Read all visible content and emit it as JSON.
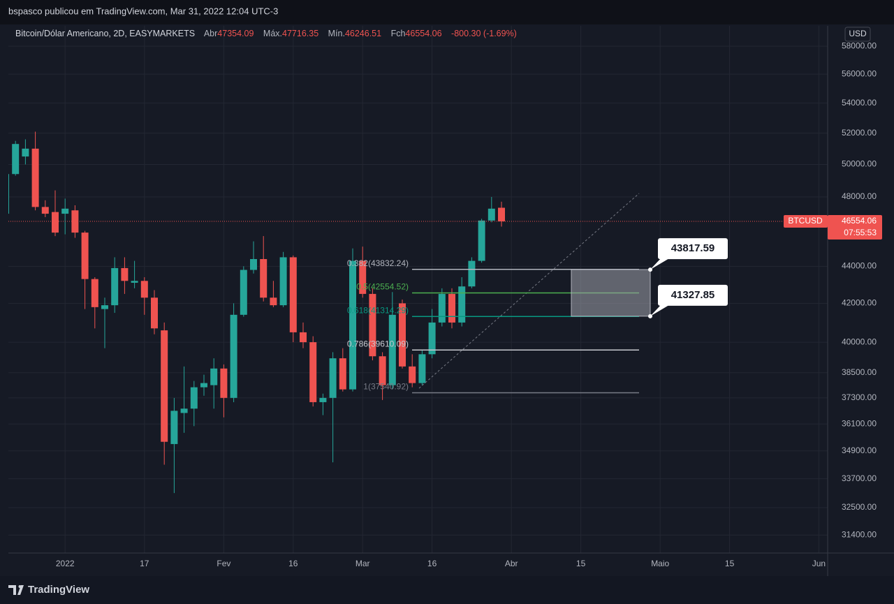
{
  "top_bar": {
    "text": "bspasco publicou em TradingView.com, Mar 31, 2022 12:04 UTC-3"
  },
  "chart_data": {
    "type": "candlestick",
    "title": "Bitcoin/Dólar Americano, 2D, EASYMARKETS",
    "legend_labels": {
      "open": "Abr",
      "high": "Máx.",
      "low": "Mín.",
      "close": "Fch"
    },
    "change": "-800.30 (-1.69%)",
    "currency": "USD",
    "symbol": "BTCUSD",
    "countdown": "07:55:53",
    "categories": [
      null,
      null,
      null,
      null,
      null,
      null,
      "2022",
      null,
      null,
      null,
      null,
      null,
      null,
      null,
      "17",
      null,
      null,
      null,
      null,
      null,
      null,
      null,
      "Fev",
      null,
      null,
      null,
      null,
      null,
      null,
      "16",
      null,
      null,
      null,
      null,
      null,
      null,
      "Mar",
      null,
      null,
      null,
      null,
      null,
      null,
      "16",
      null,
      null,
      null,
      null,
      null,
      null,
      null,
      "Abr",
      null,
      null,
      null,
      null,
      null,
      null,
      "15",
      null,
      null,
      null,
      null,
      null,
      null,
      null,
      "Maio",
      null,
      null,
      null,
      null,
      null,
      null,
      "15",
      null,
      null,
      null,
      null,
      null,
      null,
      null,
      null,
      "Jun"
    ],
    "open": [
      47000,
      49400,
      50500,
      51000,
      47400,
      47100,
      47000,
      47200,
      45900,
      43300,
      41700,
      41900,
      43900,
      43100,
      43200,
      42300,
      40600,
      35200,
      36600,
      36800,
      37800,
      37900,
      38700,
      37300,
      41400,
      43800,
      44400,
      42300,
      41900,
      44500,
      40500,
      40000,
      37100,
      37300,
      39200,
      37700,
      44300,
      42500,
      39300,
      37900,
      42000,
      38800,
      38000,
      39400,
      41000,
      42500,
      41000,
      42900,
      44300,
      46600,
      47354.09,
      null,
      null,
      null,
      null,
      null,
      null,
      null,
      null,
      null,
      null,
      null,
      null,
      null,
      null,
      null,
      null,
      null,
      null,
      null,
      null,
      null,
      null,
      null,
      null,
      null,
      null,
      null,
      null,
      null,
      null,
      null,
      null
    ],
    "high": [
      49600,
      51500,
      51600,
      52100,
      47800,
      48400,
      47900,
      47500,
      46000,
      43400,
      42300,
      44500,
      44500,
      44300,
      43400,
      42700,
      41000,
      37300,
      38800,
      38100,
      38400,
      39200,
      38900,
      42000,
      44000,
      45400,
      45700,
      43200,
      44800,
      44600,
      41000,
      40300,
      37500,
      39500,
      39700,
      45000,
      45100,
      42800,
      39500,
      42600,
      42200,
      39400,
      39600,
      41700,
      42800,
      42800,
      43400,
      44500,
      46700,
      48000,
      47716.35,
      null,
      null,
      null,
      null,
      null,
      null,
      null,
      null,
      null,
      null,
      null,
      null,
      null,
      null,
      null,
      null,
      null,
      null,
      null,
      null,
      null,
      null,
      null,
      null,
      null,
      null,
      null,
      null,
      null,
      null,
      null,
      null
    ],
    "low": [
      46600,
      49300,
      50000,
      47200,
      46800,
      45700,
      45800,
      45600,
      41700,
      40700,
      39700,
      41500,
      42500,
      42800,
      41400,
      40400,
      34300,
      33100,
      35700,
      36000,
      37400,
      36800,
      36400,
      37100,
      41300,
      43600,
      42100,
      41800,
      41800,
      40000,
      39700,
      36900,
      36500,
      34400,
      37600,
      37600,
      42300,
      39100,
      37200,
      37700,
      38700,
      37800,
      37900,
      39200,
      40800,
      40700,
      40800,
      42800,
      44200,
      46500,
      46246.51,
      null,
      null,
      null,
      null,
      null,
      null,
      null,
      null,
      null,
      null,
      null,
      null,
      null,
      null,
      null,
      null,
      null,
      null,
      null,
      null,
      null,
      null,
      null,
      null,
      null,
      null,
      null,
      null,
      null,
      null,
      null,
      null
    ],
    "close": [
      49400,
      51300,
      51000,
      47400,
      47000,
      45900,
      47300,
      45900,
      43300,
      41800,
      41900,
      43900,
      43200,
      43200,
      42300,
      40700,
      35300,
      36700,
      36800,
      37800,
      38000,
      38700,
      37300,
      41400,
      43800,
      44400,
      42300,
      41900,
      44500,
      40500,
      40000,
      37100,
      37300,
      39200,
      37700,
      44300,
      42500,
      39300,
      37900,
      41400,
      38800,
      38000,
      39400,
      41000,
      42500,
      41000,
      42900,
      44300,
      46600,
      47300,
      46554.06,
      null,
      null,
      null,
      null,
      null,
      null,
      null,
      null,
      null,
      null,
      null,
      null,
      null,
      null,
      null,
      null,
      null,
      null,
      null,
      null,
      null,
      null,
      null,
      null,
      null,
      null,
      null,
      null,
      null,
      null,
      null,
      null
    ],
    "up_color": "#26a69a",
    "down_color": "#ef5350",
    "ylim": [
      30700,
      59500
    ],
    "log": true,
    "yticks": [
      {
        "value": 58000,
        "label": "58000.00"
      },
      {
        "value": 56000,
        "label": "56000.00"
      },
      {
        "value": 54000,
        "label": "54000.00"
      },
      {
        "value": 52000,
        "label": "52000.00"
      },
      {
        "value": 50000,
        "label": "50000.00"
      },
      {
        "value": 48000,
        "label": "48000.00"
      },
      {
        "value": 44000,
        "label": "44000.00"
      },
      {
        "value": 42000,
        "label": "42000.00"
      },
      {
        "value": 40000,
        "label": "40000.00"
      },
      {
        "value": 38500,
        "label": "38500.00"
      },
      {
        "value": 37300,
        "label": "37300.00"
      },
      {
        "value": 36100,
        "label": "36100.00"
      },
      {
        "value": 34900,
        "label": "34900.00"
      },
      {
        "value": 33700,
        "label": "33700.00"
      },
      {
        "value": 32500,
        "label": "32500.00"
      },
      {
        "value": 31400,
        "label": "31400.00"
      }
    ],
    "grid": true,
    "fib_levels": [
      {
        "value": 43832.24,
        "label": "0.382(43832.24)"
      },
      {
        "value": 42554.52,
        "label": "0.5(42554.52)"
      },
      {
        "value": 41314.29,
        "label": "0.618(41314.29)"
      },
      {
        "value": 39610.09,
        "label": "0.786(39610.09)"
      },
      {
        "value": 37540.92,
        "label": "1(37540.92)"
      }
    ],
    "fib_colors": [
      "#b2b5be",
      "#4caf50",
      "#089981",
      "#c8cad0",
      "#787b86"
    ],
    "price_labels": [
      43817.59,
      41327.85
    ]
  },
  "footer": {
    "brand": "TradingView"
  }
}
